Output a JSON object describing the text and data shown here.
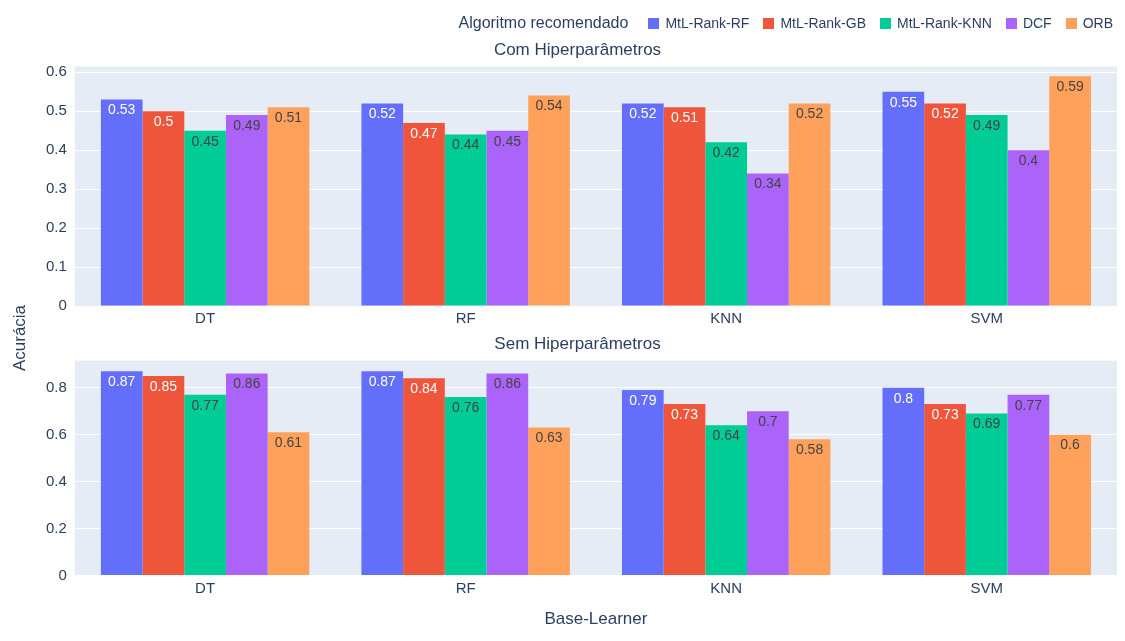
{
  "chart_data": [
    {
      "type": "bar",
      "title": "Com Hiperparâmetros",
      "ylabel": "Acurácia",
      "legend_title": "Algoritmo recomendado",
      "legend": "top",
      "categories": [
        "DT",
        "RF",
        "KNN",
        "SVM"
      ],
      "ylim": [
        0,
        0.615
      ],
      "yticks": [
        0,
        0.1,
        0.2,
        0.3,
        0.4,
        0.5,
        0.6
      ],
      "grid": "y",
      "data_labels": true,
      "series": [
        {
          "name": "MtL-Rank-RF",
          "color": "#636efa",
          "values": [
            0.53,
            0.52,
            0.52,
            0.55
          ]
        },
        {
          "name": "MtL-Rank-GB",
          "color": "#ef553b",
          "values": [
            0.5,
            0.47,
            0.51,
            0.52
          ]
        },
        {
          "name": "MtL-Rank-KNN",
          "color": "#00cc96",
          "values": [
            0.45,
            0.44,
            0.42,
            0.49
          ]
        },
        {
          "name": "DCF",
          "color": "#ab63fa",
          "values": [
            0.49,
            0.45,
            0.34,
            0.4
          ]
        },
        {
          "name": "ORB",
          "color": "#ffa15a",
          "values": [
            0.51,
            0.54,
            0.52,
            0.59
          ]
        }
      ]
    },
    {
      "type": "bar",
      "title": "Sem Hiperparâmetros",
      "xlabel": "Base-Learner",
      "categories": [
        "DT",
        "RF",
        "KNN",
        "SVM"
      ],
      "ylim": [
        0,
        0.916
      ],
      "yticks": [
        0,
        0.2,
        0.4,
        0.6,
        0.8
      ],
      "grid": "y",
      "data_labels": true,
      "series": [
        {
          "color": "#636efa",
          "values": [
            0.87,
            0.87,
            0.79,
            0.8
          ]
        },
        {
          "color": "#ef553b",
          "values": [
            0.85,
            0.84,
            0.73,
            0.73
          ]
        },
        {
          "color": "#00cc96",
          "values": [
            0.77,
            0.76,
            0.64,
            0.69
          ]
        },
        {
          "color": "#ab63fa",
          "values": [
            0.86,
            0.86,
            0.7,
            0.77
          ]
        },
        {
          "color": "#ffa15a",
          "values": [
            0.61,
            0.63,
            0.58,
            0.6
          ]
        }
      ]
    }
  ]
}
